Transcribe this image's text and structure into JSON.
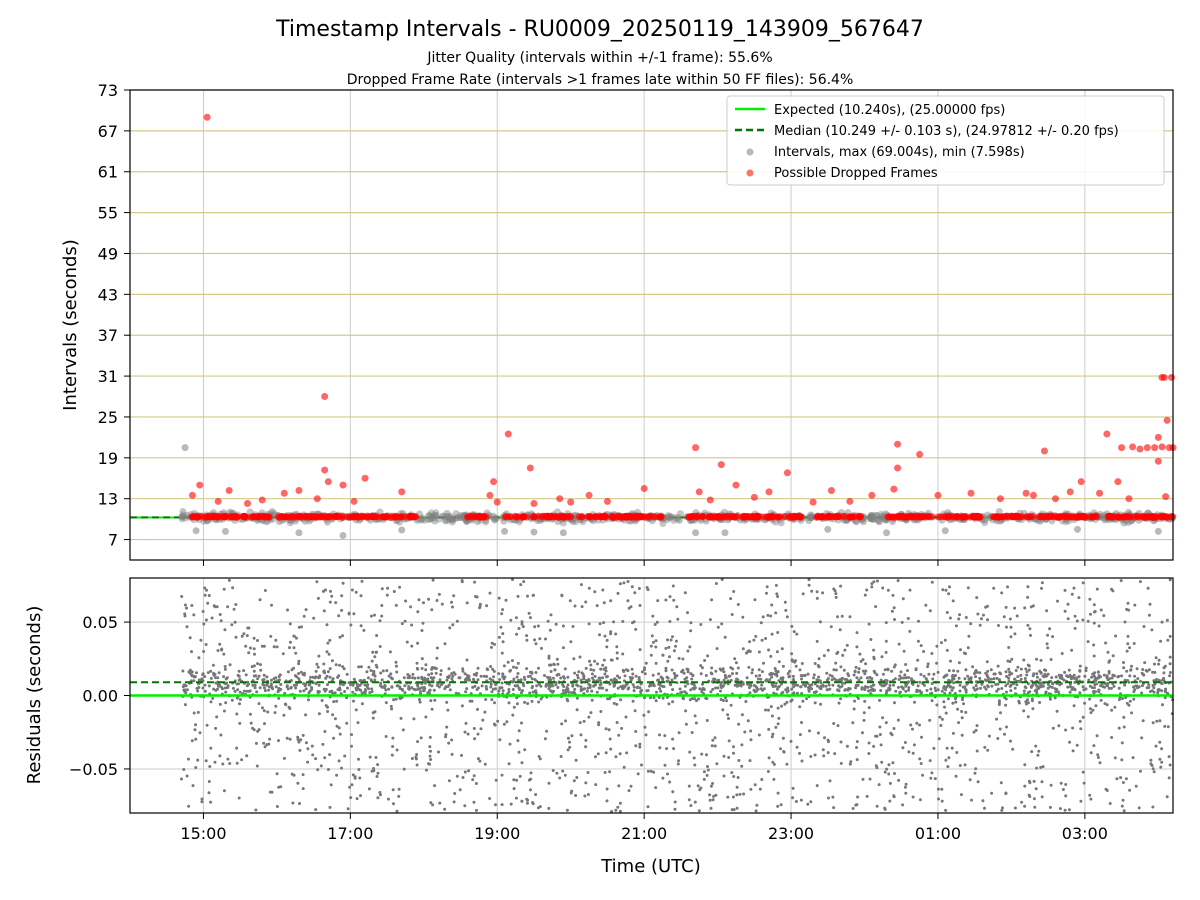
{
  "chart_data": [
    {
      "type": "scatter",
      "title": "Timestamp Intervals - RU0009_20250119_143909_567647",
      "subtitle_1": "Jitter Quality (intervals within +/-1 frame): 55.6%",
      "subtitle_2": "Dropped Frame Rate (intervals >1 frames late within 50 FF files): 56.4%",
      "xlabel": "",
      "ylabel": "Intervals (seconds)",
      "x_range_hours": [
        14.0,
        28.2
      ],
      "ylim": [
        4,
        73
      ],
      "yticks": [
        7,
        13,
        19,
        25,
        31,
        37,
        43,
        49,
        55,
        61,
        67,
        73
      ],
      "xticks_hours": [
        15,
        17,
        19,
        21,
        23,
        25,
        27
      ],
      "xtick_labels": [
        "15:00",
        "17:00",
        "19:00",
        "21:00",
        "23:00",
        "01:00",
        "03:00"
      ],
      "grid": {
        "horizontal_color": "#d4c98a",
        "vertical_color": "#cccccc"
      },
      "legend_position": "top-right",
      "legend": [
        {
          "label": "Expected (10.240s), (25.00000 fps)",
          "kind": "solid-line",
          "color": "#00ee00"
        },
        {
          "label": "Median (10.249 +/- 0.103 s), (24.97812 +/- 0.20 fps)",
          "kind": "dashed-line",
          "color": "#007700"
        },
        {
          "label": "Intervals, max (69.004s), min (7.598s)",
          "kind": "dot",
          "color": "#808080"
        },
        {
          "label": "Possible Dropped Frames",
          "kind": "dot",
          "color": "#ff0000"
        }
      ],
      "expected_line": 10.24,
      "median_line": 10.249,
      "series_intervals_outliers": [
        [
          14.75,
          20.5
        ],
        [
          14.9,
          8.3
        ],
        [
          15.3,
          8.2
        ],
        [
          16.3,
          8.0
        ],
        [
          16.9,
          7.6
        ],
        [
          17.7,
          8.4
        ],
        [
          19.1,
          8.2
        ],
        [
          19.5,
          8.1
        ],
        [
          19.9,
          8.0
        ],
        [
          21.7,
          8.0
        ],
        [
          22.1,
          8.0
        ],
        [
          23.5,
          8.5
        ],
        [
          24.3,
          8.0
        ],
        [
          25.1,
          8.3
        ],
        [
          26.9,
          8.5
        ],
        [
          28.0,
          8.2
        ]
      ],
      "series_dropped_frames": [
        [
          15.05,
          69.0
        ],
        [
          14.95,
          15.0
        ],
        [
          14.85,
          13.5
        ],
        [
          15.2,
          12.6
        ],
        [
          15.35,
          14.2
        ],
        [
          15.6,
          12.3
        ],
        [
          15.8,
          12.8
        ],
        [
          16.1,
          13.8
        ],
        [
          16.3,
          14.2
        ],
        [
          16.55,
          13.0
        ],
        [
          16.65,
          28.0
        ],
        [
          16.65,
          17.2
        ],
        [
          16.7,
          15.5
        ],
        [
          16.9,
          15.0
        ],
        [
          17.05,
          12.6
        ],
        [
          17.2,
          16.0
        ],
        [
          17.7,
          14.0
        ],
        [
          18.9,
          13.5
        ],
        [
          18.95,
          15.5
        ],
        [
          19.0,
          12.5
        ],
        [
          19.15,
          22.5
        ],
        [
          19.45,
          17.5
        ],
        [
          19.5,
          12.3
        ],
        [
          19.85,
          13.0
        ],
        [
          20.0,
          12.5
        ],
        [
          20.25,
          13.5
        ],
        [
          20.5,
          12.6
        ],
        [
          21.0,
          14.5
        ],
        [
          21.7,
          20.5
        ],
        [
          21.75,
          14.0
        ],
        [
          21.9,
          12.8
        ],
        [
          22.05,
          18.0
        ],
        [
          22.25,
          15.0
        ],
        [
          22.5,
          13.2
        ],
        [
          22.7,
          14.0
        ],
        [
          22.95,
          16.8
        ],
        [
          23.3,
          12.5
        ],
        [
          23.55,
          14.2
        ],
        [
          23.8,
          12.6
        ],
        [
          24.1,
          13.5
        ],
        [
          24.4,
          14.4
        ],
        [
          24.45,
          21.0
        ],
        [
          24.45,
          17.5
        ],
        [
          24.75,
          19.5
        ],
        [
          25.0,
          13.5
        ],
        [
          25.45,
          13.8
        ],
        [
          25.85,
          13.0
        ],
        [
          26.2,
          13.8
        ],
        [
          26.3,
          13.5
        ],
        [
          26.45,
          20.0
        ],
        [
          26.6,
          13.0
        ],
        [
          26.8,
          14.0
        ],
        [
          26.95,
          15.5
        ],
        [
          27.2,
          13.8
        ],
        [
          27.3,
          22.5
        ],
        [
          27.45,
          15.5
        ],
        [
          27.6,
          13.0
        ],
        [
          27.75,
          20.3
        ],
        [
          27.85,
          20.5
        ],
        [
          27.95,
          20.5
        ],
        [
          28.05,
          30.8
        ],
        [
          28.08,
          30.8
        ],
        [
          28.12,
          24.5
        ],
        [
          28.15,
          20.5
        ],
        [
          28.18,
          30.8
        ],
        [
          28.2,
          20.5
        ],
        [
          28.0,
          22.0
        ],
        [
          28.0,
          18.5
        ],
        [
          28.05,
          20.6
        ],
        [
          27.5,
          20.5
        ],
        [
          27.65,
          20.6
        ],
        [
          28.1,
          13.3
        ]
      ]
    },
    {
      "type": "scatter",
      "title": "",
      "xlabel": "Time (UTC)",
      "ylabel": "Residuals (seconds)",
      "x_range_hours": [
        14.0,
        28.2
      ],
      "ylim": [
        -0.08,
        0.08
      ],
      "yticks": [
        -0.05,
        0.0,
        0.05
      ],
      "ytick_labels": [
        "−0.05",
        "0.00",
        "0.05"
      ],
      "xticks_hours": [
        15,
        17,
        19,
        21,
        23,
        25,
        27
      ],
      "xtick_labels": [
        "15:00",
        "17:00",
        "19:00",
        "21:00",
        "23:00",
        "01:00",
        "03:00"
      ],
      "grid": true,
      "expected_line": 0.0,
      "median_line": 0.009,
      "series_residuals": {
        "x_start_hours": 14.7,
        "x_end_hours": 28.2,
        "count": 3200,
        "color": "#777777"
      }
    }
  ]
}
